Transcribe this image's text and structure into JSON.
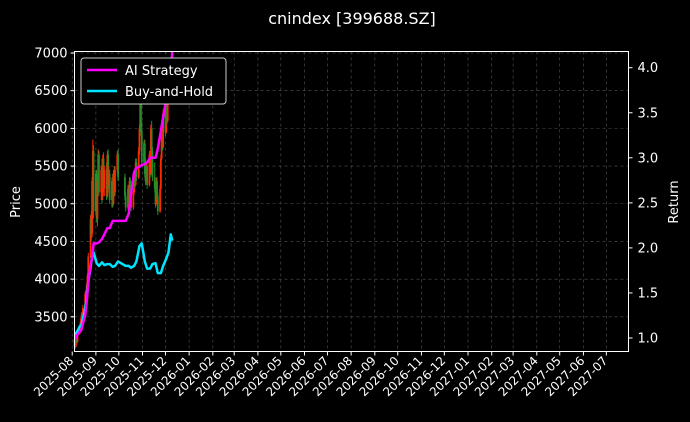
{
  "chart_data": {
    "type": "line",
    "title": "cnindex [399688.SZ]",
    "ylabel_left": "Price",
    "ylabel_right": "Return",
    "ylim_left": [
      3040,
      7020
    ],
    "ylim_right": [
      0.85,
      4.18
    ],
    "yticks_left": [
      3500,
      4000,
      4500,
      5000,
      5500,
      6000,
      6500,
      7000
    ],
    "yticks_right": [
      1.0,
      1.5,
      2.0,
      2.5,
      3.0,
      3.5,
      4.0
    ],
    "xlim": [
      "2025-08-04",
      "2027-07-30"
    ],
    "xticks": [
      "2025-08",
      "2025-09",
      "2025-10",
      "2025-11",
      "2025-12",
      "2026-01",
      "2026-02",
      "2026-03",
      "2026-04",
      "2026-05",
      "2026-06",
      "2026-07",
      "2026-08",
      "2026-09",
      "2026-10",
      "2026-11",
      "2026-12",
      "2027-01",
      "2027-02",
      "2027-03",
      "2027-04",
      "2027-05",
      "2027-06",
      "2027-07"
    ],
    "grid": true,
    "legend": "top-left",
    "background": "#000000",
    "colors": {
      "candle_up": "#ff2a00",
      "candle_down": "#1f8f2a",
      "ai_strategy": "#ff00ff",
      "buy_and_hold": "#00e5ff",
      "grid": "#555555"
    },
    "candles": [
      {
        "date": "2025-08-04",
        "open": 3110,
        "high": 3230,
        "low": 3060,
        "close": 3200
      },
      {
        "date": "2025-08-05",
        "open": 3200,
        "high": 3260,
        "low": 3080,
        "close": 3120
      },
      {
        "date": "2025-08-06",
        "open": 3120,
        "high": 3290,
        "low": 3100,
        "close": 3250
      },
      {
        "date": "2025-08-07",
        "open": 3250,
        "high": 3300,
        "low": 3150,
        "close": 3170
      },
      {
        "date": "2025-08-08",
        "open": 3170,
        "high": 3330,
        "low": 3150,
        "close": 3300
      },
      {
        "date": "2025-08-11",
        "open": 3300,
        "high": 3420,
        "low": 3270,
        "close": 3390
      },
      {
        "date": "2025-08-12",
        "open": 3390,
        "high": 3480,
        "low": 3330,
        "close": 3440
      },
      {
        "date": "2025-08-13",
        "open": 3440,
        "high": 3560,
        "low": 3400,
        "close": 3520
      },
      {
        "date": "2025-08-14",
        "open": 3520,
        "high": 3560,
        "low": 3380,
        "close": 3430
      },
      {
        "date": "2025-08-15",
        "open": 3430,
        "high": 3660,
        "low": 3420,
        "close": 3620
      },
      {
        "date": "2025-08-18",
        "open": 3620,
        "high": 3840,
        "low": 3600,
        "close": 3800
      },
      {
        "date": "2025-08-19",
        "open": 3800,
        "high": 3860,
        "low": 3660,
        "close": 3700
      },
      {
        "date": "2025-08-20",
        "open": 3700,
        "high": 3950,
        "low": 3680,
        "close": 3920
      },
      {
        "date": "2025-08-21",
        "open": 3920,
        "high": 4080,
        "low": 3850,
        "close": 4050
      },
      {
        "date": "2025-08-22",
        "open": 4050,
        "high": 4350,
        "low": 4020,
        "close": 4300
      },
      {
        "date": "2025-08-25",
        "open": 4300,
        "high": 4850,
        "low": 4280,
        "close": 4800
      },
      {
        "date": "2025-08-26",
        "open": 4800,
        "high": 4900,
        "low": 4500,
        "close": 4600
      },
      {
        "date": "2025-08-27",
        "open": 4600,
        "high": 5350,
        "low": 4550,
        "close": 5300
      },
      {
        "date": "2025-08-28",
        "open": 5300,
        "high": 5850,
        "low": 5200,
        "close": 5700
      },
      {
        "date": "2025-08-29",
        "open": 5700,
        "high": 5780,
        "low": 4800,
        "close": 4900
      },
      {
        "date": "2025-09-01",
        "open": 4900,
        "high": 5450,
        "low": 4850,
        "close": 5400
      },
      {
        "date": "2025-09-02",
        "open": 5400,
        "high": 5450,
        "low": 4750,
        "close": 4800
      },
      {
        "date": "2025-09-03",
        "open": 4800,
        "high": 5350,
        "low": 4700,
        "close": 5300
      },
      {
        "date": "2025-09-04",
        "open": 5300,
        "high": 5720,
        "low": 5250,
        "close": 5650
      },
      {
        "date": "2025-09-05",
        "open": 5650,
        "high": 5700,
        "low": 5100,
        "close": 5150
      },
      {
        "date": "2025-09-08",
        "open": 5150,
        "high": 5500,
        "low": 5050,
        "close": 5450
      },
      {
        "date": "2025-09-09",
        "open": 5450,
        "high": 5600,
        "low": 5000,
        "close": 5100
      },
      {
        "date": "2025-09-10",
        "open": 5100,
        "high": 5650,
        "low": 5050,
        "close": 5600
      },
      {
        "date": "2025-09-11",
        "open": 5600,
        "high": 5680,
        "low": 5150,
        "close": 5200
      },
      {
        "date": "2025-09-12",
        "open": 5200,
        "high": 5500,
        "low": 5100,
        "close": 5450
      },
      {
        "date": "2025-09-15",
        "open": 5450,
        "high": 5550,
        "low": 5050,
        "close": 5100
      },
      {
        "date": "2025-09-16",
        "open": 5100,
        "high": 5700,
        "low": 5080,
        "close": 5650
      },
      {
        "date": "2025-09-17",
        "open": 5650,
        "high": 5720,
        "low": 5200,
        "close": 5250
      },
      {
        "date": "2025-09-18",
        "open": 5250,
        "high": 5500,
        "low": 5150,
        "close": 5400
      },
      {
        "date": "2025-09-19",
        "open": 5400,
        "high": 5450,
        "low": 5000,
        "close": 5050
      },
      {
        "date": "2025-09-22",
        "open": 5050,
        "high": 5350,
        "low": 4950,
        "close": 5300
      },
      {
        "date": "2025-09-23",
        "open": 5300,
        "high": 5400,
        "low": 4950,
        "close": 5000
      },
      {
        "date": "2025-09-24",
        "open": 5000,
        "high": 5450,
        "low": 4980,
        "close": 5400
      },
      {
        "date": "2025-09-25",
        "open": 5400,
        "high": 5500,
        "low": 5100,
        "close": 5150
      },
      {
        "date": "2025-09-26",
        "open": 5150,
        "high": 5500,
        "low": 5100,
        "close": 5450
      },
      {
        "date": "2025-09-29",
        "open": 5450,
        "high": 5700,
        "low": 5400,
        "close": 5650
      },
      {
        "date": "2025-09-30",
        "open": 5650,
        "high": 5720,
        "low": 5300,
        "close": 5350
      },
      {
        "date": "2025-10-09",
        "open": 5350,
        "high": 5400,
        "low": 5050,
        "close": 5100
      },
      {
        "date": "2025-10-10",
        "open": 5100,
        "high": 5150,
        "low": 4900,
        "close": 4950
      },
      {
        "date": "2025-10-13",
        "open": 4950,
        "high": 5250,
        "low": 4920,
        "close": 5200
      },
      {
        "date": "2025-10-14",
        "open": 5200,
        "high": 5250,
        "low": 4980,
        "close": 5020
      },
      {
        "date": "2025-10-15",
        "open": 5020,
        "high": 5350,
        "low": 5000,
        "close": 5300
      },
      {
        "date": "2025-10-16",
        "open": 5300,
        "high": 5350,
        "low": 5050,
        "close": 5100
      },
      {
        "date": "2025-10-17",
        "open": 5100,
        "high": 5150,
        "low": 4900,
        "close": 4950
      },
      {
        "date": "2025-10-20",
        "open": 4950,
        "high": 5200,
        "low": 4920,
        "close": 5150
      },
      {
        "date": "2025-10-21",
        "open": 5150,
        "high": 5450,
        "low": 5120,
        "close": 5400
      },
      {
        "date": "2025-10-22",
        "open": 5400,
        "high": 5450,
        "low": 5200,
        "close": 5250
      },
      {
        "date": "2025-10-23",
        "open": 5250,
        "high": 5600,
        "low": 5230,
        "close": 5550
      },
      {
        "date": "2025-10-24",
        "open": 5550,
        "high": 5600,
        "low": 5300,
        "close": 5350
      },
      {
        "date": "2025-10-27",
        "open": 5350,
        "high": 5750,
        "low": 5330,
        "close": 5700
      },
      {
        "date": "2025-10-28",
        "open": 5700,
        "high": 6050,
        "low": 5650,
        "close": 6000
      },
      {
        "date": "2025-10-29",
        "open": 6000,
        "high": 6550,
        "low": 5950,
        "close": 6400
      },
      {
        "date": "2025-10-30",
        "open": 6400,
        "high": 6450,
        "low": 5900,
        "close": 5950
      },
      {
        "date": "2025-10-31",
        "open": 5950,
        "high": 6100,
        "low": 5500,
        "close": 5550
      },
      {
        "date": "2025-11-03",
        "open": 5550,
        "high": 5850,
        "low": 5500,
        "close": 5800
      },
      {
        "date": "2025-11-04",
        "open": 5800,
        "high": 5850,
        "low": 5350,
        "close": 5400
      },
      {
        "date": "2025-11-05",
        "open": 5400,
        "high": 5600,
        "low": 5250,
        "close": 5300
      },
      {
        "date": "2025-11-06",
        "open": 5300,
        "high": 5550,
        "low": 5280,
        "close": 5500
      },
      {
        "date": "2025-11-07",
        "open": 5500,
        "high": 5550,
        "low": 5200,
        "close": 5250
      },
      {
        "date": "2025-11-10",
        "open": 5250,
        "high": 5700,
        "low": 5230,
        "close": 5650
      },
      {
        "date": "2025-11-11",
        "open": 5650,
        "high": 5700,
        "low": 5350,
        "close": 5400
      },
      {
        "date": "2025-11-12",
        "open": 5400,
        "high": 6050,
        "low": 5380,
        "close": 6000
      },
      {
        "date": "2025-11-13",
        "open": 6000,
        "high": 6100,
        "low": 5650,
        "close": 5700
      },
      {
        "date": "2025-11-14",
        "open": 5700,
        "high": 5750,
        "low": 5300,
        "close": 5350
      },
      {
        "date": "2025-11-17",
        "open": 5350,
        "high": 5550,
        "low": 5150,
        "close": 5200
      },
      {
        "date": "2025-11-18",
        "open": 5200,
        "high": 5250,
        "low": 4950,
        "close": 5000
      },
      {
        "date": "2025-11-19",
        "open": 5000,
        "high": 5350,
        "low": 4980,
        "close": 5300
      },
      {
        "date": "2025-11-20",
        "open": 5300,
        "high": 5350,
        "low": 5050,
        "close": 5100
      },
      {
        "date": "2025-11-21",
        "open": 5100,
        "high": 5150,
        "low": 4850,
        "close": 4900
      },
      {
        "date": "2025-11-24",
        "open": 4900,
        "high": 5250,
        "low": 4880,
        "close": 5200
      },
      {
        "date": "2025-11-25",
        "open": 5200,
        "high": 5650,
        "low": 5180,
        "close": 5600
      },
      {
        "date": "2025-11-26",
        "open": 5600,
        "high": 6100,
        "low": 5580,
        "close": 6050
      },
      {
        "date": "2025-11-27",
        "open": 6050,
        "high": 6100,
        "low": 5700,
        "close": 5750
      },
      {
        "date": "2025-11-28",
        "open": 5750,
        "high": 6250,
        "low": 5730,
        "close": 6200
      },
      {
        "date": "2025-12-01",
        "open": 6200,
        "high": 6250,
        "low": 5900,
        "close": 5950
      },
      {
        "date": "2025-12-02",
        "open": 5950,
        "high": 6350,
        "low": 5930,
        "close": 6300
      },
      {
        "date": "2025-12-03",
        "open": 6300,
        "high": 6350,
        "low": 6050,
        "close": 6100
      },
      {
        "date": "2025-12-04",
        "open": 6100,
        "high": 6550,
        "low": 6080,
        "close": 6500
      },
      {
        "date": "2025-12-05",
        "open": 6500,
        "high": 6700,
        "low": 6450,
        "close": 6650
      },
      {
        "date": "2025-12-08",
        "open": 6650,
        "high": 6700,
        "low": 6350,
        "close": 6400
      },
      {
        "date": "2025-12-09",
        "open": 6400,
        "high": 6800,
        "low": 6380,
        "close": 6750
      },
      {
        "date": "2025-12-10",
        "open": 6750,
        "high": 6950,
        "low": 6700,
        "close": 6900
      }
    ],
    "series": [
      {
        "name": "AI Strategy",
        "axis": "right",
        "x": [
          "2025-08-04",
          "2025-08-06",
          "2025-08-08",
          "2025-08-11",
          "2025-08-13",
          "2025-08-15",
          "2025-08-18",
          "2025-08-20",
          "2025-08-22",
          "2025-08-25",
          "2025-08-27",
          "2025-08-29",
          "2025-09-02",
          "2025-09-05",
          "2025-09-09",
          "2025-09-12",
          "2025-09-16",
          "2025-09-19",
          "2025-09-23",
          "2025-09-26",
          "2025-09-30",
          "2025-10-10",
          "2025-10-14",
          "2025-10-17",
          "2025-10-21",
          "2025-10-24",
          "2025-10-28",
          "2025-10-31",
          "2025-11-04",
          "2025-11-07",
          "2025-11-11",
          "2025-11-14",
          "2025-11-18",
          "2025-11-21",
          "2025-11-25",
          "2025-11-28",
          "2025-12-02",
          "2025-12-05",
          "2025-12-08",
          "2025-12-10"
        ],
        "y": [
          1.0,
          1.0,
          1.04,
          1.07,
          1.09,
          1.16,
          1.25,
          1.4,
          1.6,
          1.82,
          1.88,
          2.05,
          2.05,
          2.06,
          2.1,
          2.15,
          2.22,
          2.22,
          2.3,
          2.3,
          2.3,
          2.3,
          2.38,
          2.6,
          2.84,
          2.89,
          2.9,
          2.92,
          2.93,
          2.95,
          3.0,
          3.0,
          3.0,
          3.1,
          3.3,
          3.45,
          3.65,
          3.8,
          3.95,
          4.18
        ]
      },
      {
        "name": "Buy-and-Hold",
        "axis": "right",
        "x": [
          "2025-08-04",
          "2025-08-06",
          "2025-08-08",
          "2025-08-11",
          "2025-08-13",
          "2025-08-15",
          "2025-08-18",
          "2025-08-20",
          "2025-08-22",
          "2025-08-25",
          "2025-08-27",
          "2025-08-29",
          "2025-09-02",
          "2025-09-05",
          "2025-09-09",
          "2025-09-12",
          "2025-09-16",
          "2025-09-19",
          "2025-09-23",
          "2025-09-26",
          "2025-09-30",
          "2025-10-10",
          "2025-10-14",
          "2025-10-17",
          "2025-10-21",
          "2025-10-24",
          "2025-10-28",
          "2025-10-31",
          "2025-11-04",
          "2025-11-07",
          "2025-11-11",
          "2025-11-14",
          "2025-11-18",
          "2025-11-21",
          "2025-11-25",
          "2025-11-28",
          "2025-12-02",
          "2025-12-05",
          "2025-12-08",
          "2025-12-10"
        ],
        "y": [
          1.05,
          1.05,
          1.08,
          1.13,
          1.14,
          1.22,
          1.33,
          1.45,
          1.62,
          1.78,
          1.9,
          1.95,
          1.83,
          1.8,
          1.84,
          1.81,
          1.82,
          1.82,
          1.79,
          1.8,
          1.85,
          1.8,
          1.8,
          1.78,
          1.8,
          1.85,
          2.02,
          2.05,
          1.85,
          1.77,
          1.77,
          1.82,
          1.83,
          1.72,
          1.72,
          1.8,
          1.88,
          1.95,
          2.15,
          2.08
        ]
      }
    ]
  }
}
